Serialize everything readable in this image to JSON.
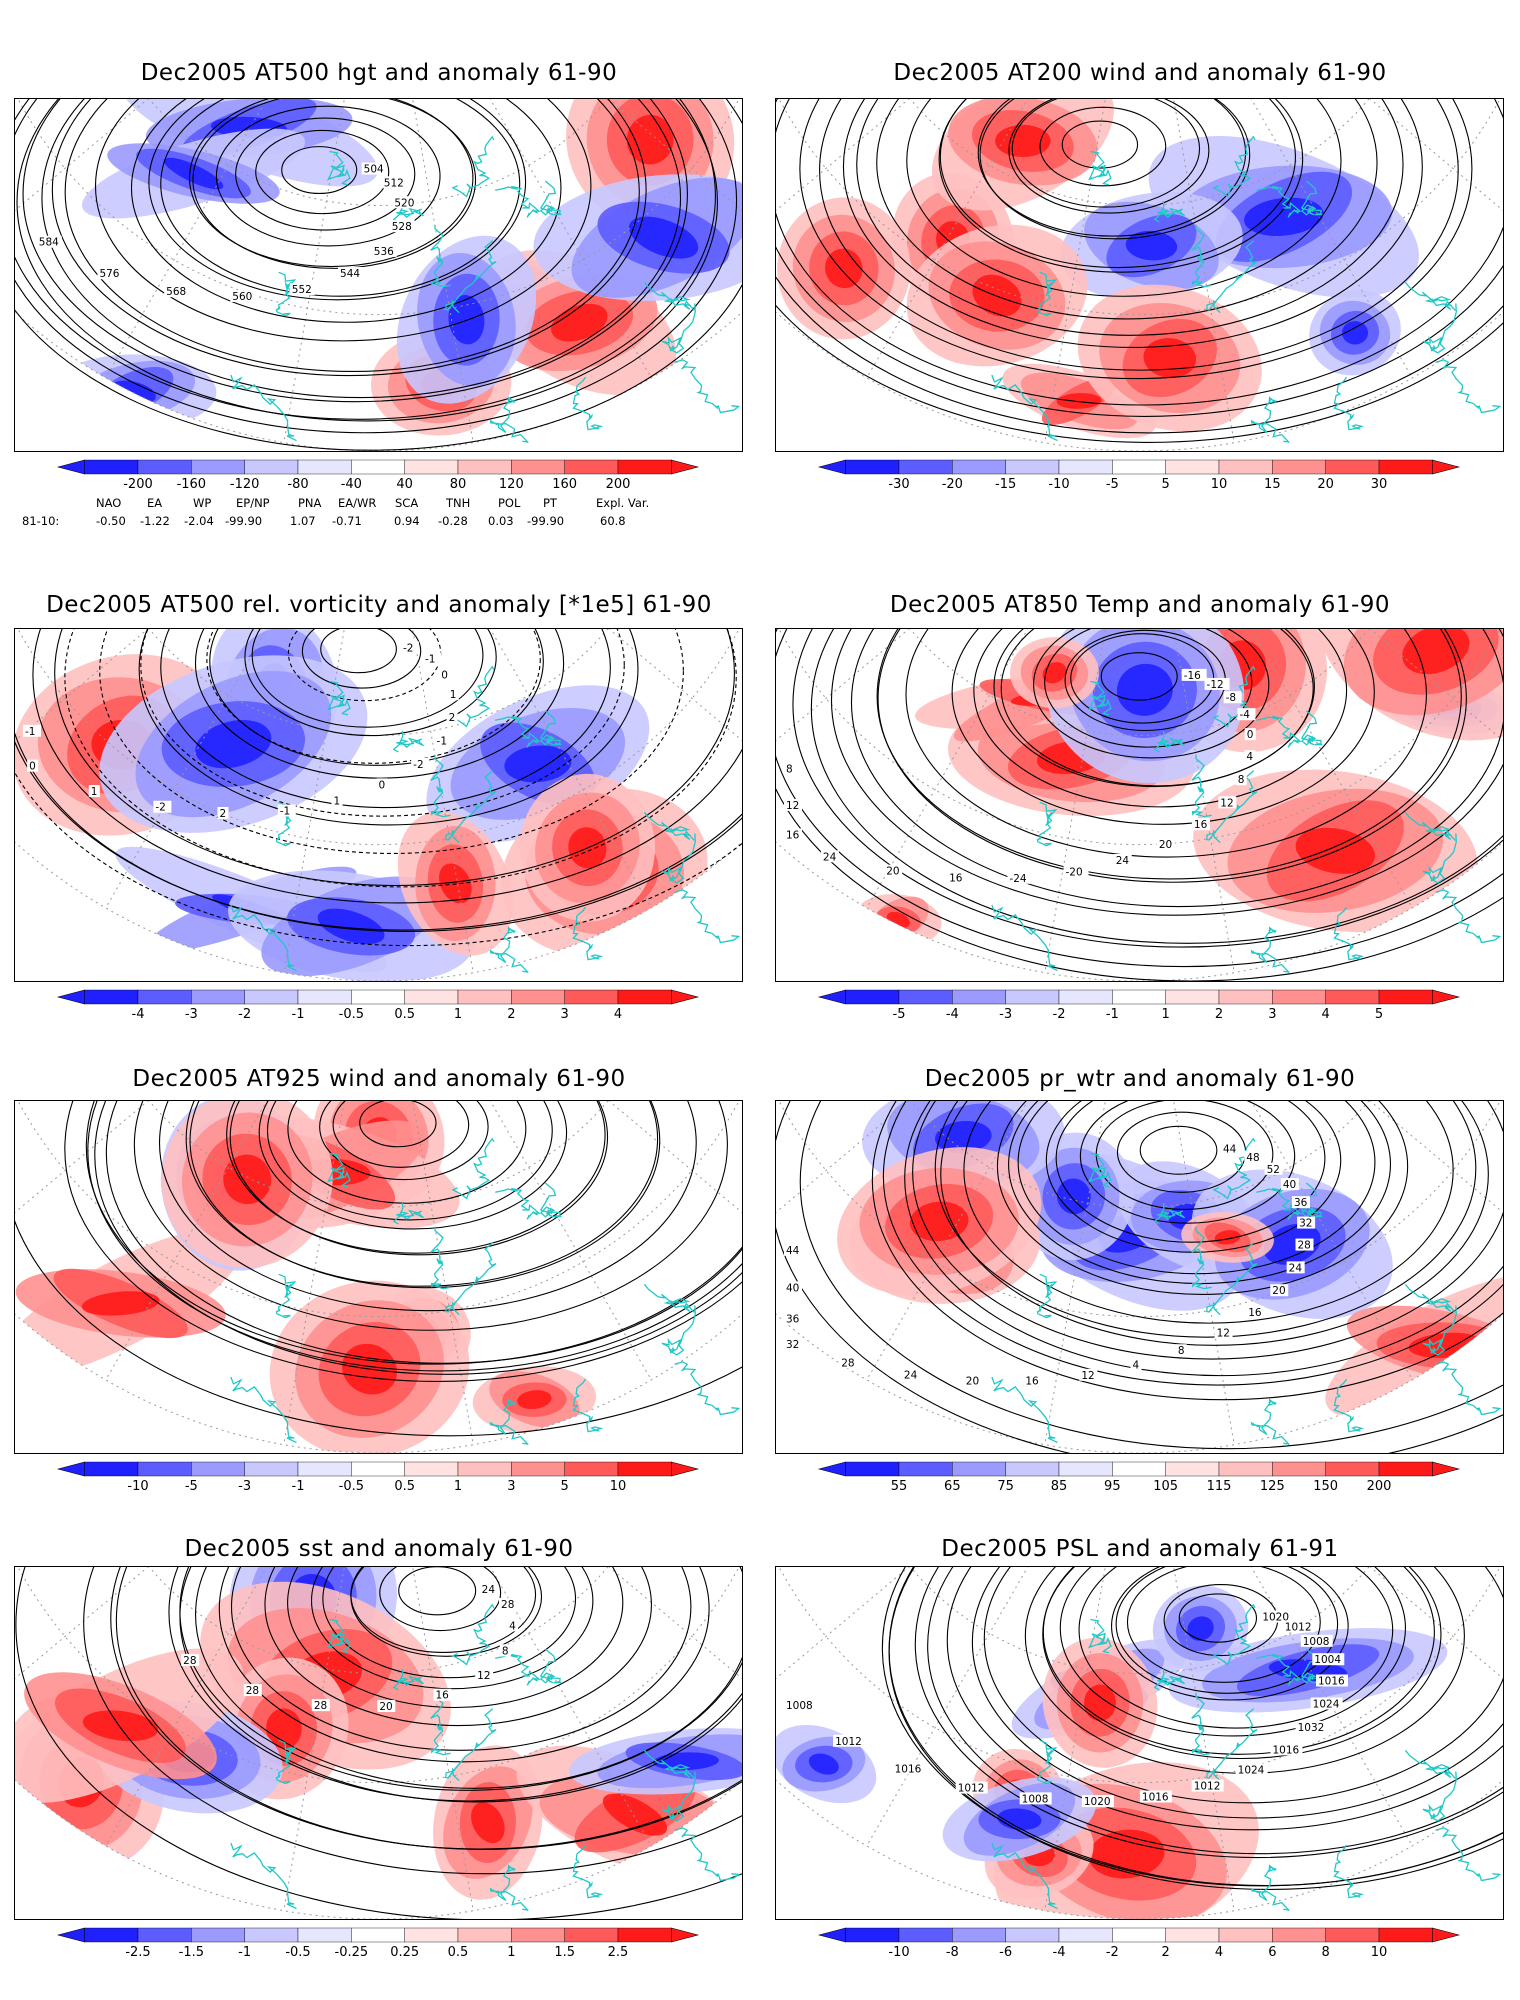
{
  "panels": [
    {
      "id": "p1",
      "title": "Dec2005 AT500 hgt and anomaly 61-90",
      "ticks": [
        "-200",
        "-160",
        "-120",
        "-80",
        "-40",
        "40",
        "80",
        "120",
        "160",
        "200"
      ],
      "contour_labels": [
        "504",
        "512",
        "520",
        "528",
        "536",
        "544",
        "552",
        "560",
        "568",
        "576",
        "584"
      ]
    },
    {
      "id": "p2",
      "title": "Dec2005 AT200 wind and anomaly 61-90",
      "ticks": [
        "-30",
        "-20",
        "-15",
        "-10",
        "-5",
        "5",
        "10",
        "15",
        "20",
        "30"
      ],
      "contour_labels": []
    },
    {
      "id": "p3",
      "title": "Dec2005 AT500 rel. vorticity and anomaly [*1e5] 61-90",
      "ticks": [
        "-4",
        "-3",
        "-2",
        "-1",
        "-0.5",
        "0.5",
        "1",
        "2",
        "3",
        "4"
      ],
      "contour_labels": [
        "-2",
        "-1",
        "0",
        "1",
        "2",
        "-1",
        "-2",
        "0",
        "1",
        "-1",
        "2",
        "-2",
        "1",
        "0",
        "-1"
      ]
    },
    {
      "id": "p4",
      "title": "Dec2005 AT850 Temp and anomaly 61-90",
      "ticks": [
        "-5",
        "-4",
        "-3",
        "-2",
        "-1",
        "1",
        "2",
        "3",
        "4",
        "5"
      ],
      "contour_labels": [
        "-16",
        "-12",
        "-8",
        "-4",
        "0",
        "4",
        "8",
        "12",
        "16",
        "20",
        "24",
        "-20",
        "-24",
        "16",
        "20",
        "24",
        "16",
        "12",
        "8"
      ]
    },
    {
      "id": "p5",
      "title": "Dec2005 AT925 wind and anomaly 61-90",
      "ticks": [
        "-10",
        "-5",
        "-3",
        "-1",
        "-0.5",
        "0.5",
        "1",
        "3",
        "5",
        "10"
      ],
      "contour_labels": []
    },
    {
      "id": "p6",
      "title": "Dec2005 pr_wtr and anomaly 61-90",
      "ticks": [
        "55",
        "65",
        "75",
        "85",
        "95",
        "105",
        "115",
        "125",
        "150",
        "200"
      ],
      "contour_labels": [
        "44",
        "48",
        "52",
        "40",
        "36",
        "32",
        "28",
        "24",
        "20",
        "16",
        "12",
        "8",
        "4",
        "12",
        "16",
        "20",
        "24",
        "28",
        "32",
        "36",
        "40",
        "44"
      ]
    },
    {
      "id": "p7",
      "title": "Dec2005 sst and anomaly 61-90",
      "ticks": [
        "-2.5",
        "-1.5",
        "-1",
        "-0.5",
        "-0.25",
        "0.25",
        "0.5",
        "1",
        "1.5",
        "2.5"
      ],
      "contour_labels": [
        "24",
        "28",
        "4",
        "8",
        "12",
        "16",
        "20",
        "28",
        "28",
        "28"
      ]
    },
    {
      "id": "p8",
      "title": "Dec2005 PSL and anomaly 61-91",
      "ticks": [
        "-10",
        "-8",
        "-6",
        "-4",
        "-2",
        "2",
        "4",
        "6",
        "8",
        "10"
      ],
      "contour_labels": [
        "1020",
        "1012",
        "1008",
        "1004",
        "1016",
        "1024",
        "1032",
        "1016",
        "1024",
        "1012",
        "1016",
        "1020",
        "1008",
        "1012",
        "1016",
        "1012",
        "1008"
      ]
    }
  ],
  "teleconnections": {
    "headers": [
      "NAO",
      "EA",
      "WP",
      "EP/NP",
      "PNA",
      "EA/WR",
      "SCA",
      "TNH",
      "POL",
      "PT",
      "Expl. Var."
    ],
    "row_label": "81-10:",
    "values": [
      "-0.50",
      "-1.22",
      "-2.04",
      "-99.90",
      "1.07",
      "-0.71",
      "0.94",
      "-0.28",
      "0.03",
      "-99.90",
      "60.8"
    ]
  },
  "colors": {
    "neg": [
      "#2020ff",
      "#5c5cff",
      "#9a9aff",
      "#c8c8ff",
      "#e6e6ff"
    ],
    "pos": [
      "#ffe2e2",
      "#ffc0c0",
      "#ff9090",
      "#ff5a5a",
      "#ff1a1a"
    ],
    "coast": "#20c8c8"
  }
}
